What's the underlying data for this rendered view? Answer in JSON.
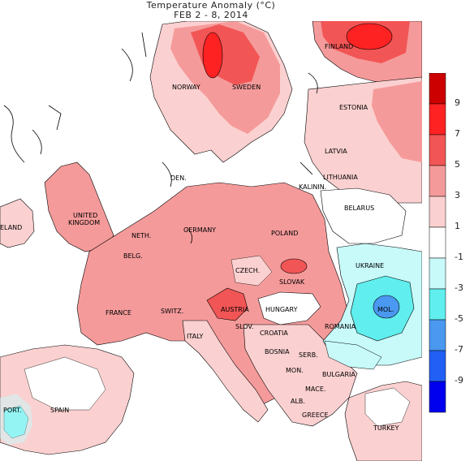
{
  "header": {
    "title": "Temperature Anomaly (°C)",
    "subtitle": "FEB 2 - 8, 2014"
  },
  "labels": {
    "finland": "FINLAND",
    "norway": "NORWAY",
    "sweden": "SWEDEN",
    "estonia": "ESTONIA",
    "latvia": "LATVIA",
    "lithuania": "LITHUANIA",
    "kalinin": "KALININ.",
    "den": "DEN.",
    "belarus": "BELARUS",
    "ireland": "ELAND",
    "uk_line1": "UNITED",
    "uk_line2": "KINGDOM",
    "neth": "NETH.",
    "germany": "GERMANY",
    "poland": "POLAND",
    "belg": "BELG.",
    "czech": "CZECH.",
    "slovak": "SLOVAK",
    "ukraine": "UKRAINE",
    "france": "FRANCE",
    "switz": "SWITZ.",
    "austria": "AUSTRIA",
    "hungary": "HUNGARY",
    "mol": "MOL.",
    "slov": "SLOV.",
    "croatia": "CROATIA",
    "romania": "ROMANIA",
    "italy": "ITALY",
    "bosnia": "BOSNIA",
    "serb": "SERB.",
    "mon": "MON.",
    "bulgaria": "BULGARIA",
    "mace": "MACE.",
    "port": "PORT.",
    "spain": "SPAIN",
    "alb": "ALB.",
    "greece": "GREECE",
    "turkey": "TURKEY"
  },
  "legend": {
    "ticks": [
      "9",
      "7",
      "5",
      "3",
      "1",
      "-1",
      "-3",
      "-5",
      "-7",
      "-9"
    ],
    "colors": [
      "#cc0000",
      "#ff2222",
      "#f25555",
      "#f59a9a",
      "#fbd0d0",
      "#ffffff",
      "#c8fafa",
      "#60eeee",
      "#4a98f0",
      "#2260f5",
      "#0000ee"
    ]
  }
}
